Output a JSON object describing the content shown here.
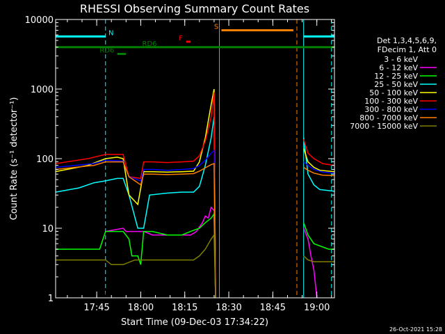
{
  "chart_data": {
    "type": "line",
    "title": "RHESSI Observing Summary Count Rates",
    "xlabel": "Start Time (09-Dec-03 17:34:22)",
    "ylabel": "Count Rate (s⁻¹ detector⁻¹)",
    "yscale": "log",
    "ylim": [
      1,
      10000
    ],
    "xlim_minutes": [
      -3,
      92
    ],
    "x_ticks": [
      {
        "m": 11,
        "label": "17:45"
      },
      {
        "m": 26,
        "label": "18:00"
      },
      {
        "m": 41,
        "label": "18:15"
      },
      {
        "m": 56,
        "label": "18:30"
      },
      {
        "m": 71,
        "label": "18:45"
      },
      {
        "m": 86,
        "label": "19:00"
      }
    ],
    "y_ticks": [
      {
        "v": 1,
        "label": "1"
      },
      {
        "v": 10,
        "label": "10"
      },
      {
        "v": 100,
        "label": "100"
      },
      {
        "v": 1000,
        "label": "1000"
      },
      {
        "v": 10000,
        "label": "10000"
      }
    ],
    "legend_title": [
      "Det 1,3,4,5,6,9,",
      "FDecim 1, Att 0"
    ],
    "legend_position": "right",
    "footer": "26-Oct-2021 15:28",
    "series": [
      {
        "name": "3 - 6 keV",
        "color": "#000000",
        "segments": [
          [
            [
              -3,
              1
            ],
            [
              14,
              1
            ],
            [
              14.5,
              1.5
            ],
            [
              16,
              2
            ],
            [
              19,
              2
            ],
            [
              22,
              2
            ],
            [
              25,
              3
            ],
            [
              28,
              2
            ],
            [
              31,
              3
            ],
            [
              34,
              2
            ],
            [
              37,
              3
            ],
            [
              40,
              2
            ],
            [
              43,
              3
            ],
            [
              46,
              3
            ],
            [
              49,
              5
            ],
            [
              51,
              5
            ],
            [
              51.5,
              1
            ]
          ],
          [
            [
              81.5,
              4
            ],
            [
              83,
              3
            ],
            [
              84,
              2
            ],
            [
              85,
              1
            ]
          ]
        ]
      },
      {
        "name": "6 - 12 keV",
        "color": "#ff00ff",
        "segments": [
          [
            [
              14,
              9
            ],
            [
              20,
              10
            ],
            [
              21,
              9
            ],
            [
              25,
              9
            ],
            [
              27,
              9
            ],
            [
              30,
              8
            ],
            [
              35,
              8
            ],
            [
              40,
              8
            ],
            [
              43,
              8
            ],
            [
              45,
              9
            ],
            [
              47,
              12
            ],
            [
              48,
              15
            ],
            [
              49,
              14
            ],
            [
              50,
              20
            ],
            [
              51,
              18
            ],
            [
              51.5,
              1
            ]
          ],
          [
            [
              81.5,
              10
            ],
            [
              83,
              7
            ],
            [
              84,
              4
            ],
            [
              85,
              2.5
            ],
            [
              86,
              1
            ]
          ]
        ]
      },
      {
        "name": "12 - 25 keV",
        "color": "#00ff00",
        "segments": [
          [
            [
              -3,
              5
            ],
            [
              12,
              5
            ],
            [
              14,
              9
            ],
            [
              20,
              9
            ],
            [
              22,
              7
            ],
            [
              23,
              4
            ],
            [
              25,
              4
            ],
            [
              26,
              3
            ],
            [
              27,
              9
            ],
            [
              30,
              9
            ],
            [
              35,
              8
            ],
            [
              40,
              8
            ],
            [
              43,
              9
            ],
            [
              46,
              10
            ],
            [
              48,
              12
            ],
            [
              50,
              14
            ],
            [
              51,
              16
            ],
            [
              51.5,
              1
            ]
          ],
          [
            [
              81.5,
              12
            ],
            [
              83,
              8
            ],
            [
              85,
              6
            ],
            [
              90,
              5
            ],
            [
              92,
              5
            ]
          ]
        ]
      },
      {
        "name": "25 - 50 keV",
        "color": "#00ffff",
        "segments": [
          [
            [
              -3,
              33
            ],
            [
              5,
              38
            ],
            [
              10,
              45
            ],
            [
              14,
              48
            ],
            [
              18,
              52
            ],
            [
              20,
              52
            ],
            [
              22,
              30
            ],
            [
              25,
              10
            ],
            [
              27,
              10
            ],
            [
              29,
              30
            ],
            [
              35,
              32
            ],
            [
              40,
              33
            ],
            [
              44,
              33
            ],
            [
              46,
              40
            ],
            [
              48,
              80
            ],
            [
              50,
              200
            ],
            [
              51,
              400
            ],
            [
              51.5,
              1
            ]
          ],
          [
            [
              81.5,
              200
            ],
            [
              83,
              60
            ],
            [
              85,
              42
            ],
            [
              87,
              36
            ],
            [
              92,
              34
            ]
          ]
        ]
      },
      {
        "name": "50 - 100 keV",
        "color": "#ffff00",
        "segments": [
          [
            [
              -3,
              65
            ],
            [
              8,
              80
            ],
            [
              14,
              100
            ],
            [
              18,
              105
            ],
            [
              20,
              100
            ],
            [
              22,
              30
            ],
            [
              25,
              22
            ],
            [
              27,
              65
            ],
            [
              30,
              65
            ],
            [
              35,
              64
            ],
            [
              40,
              65
            ],
            [
              44,
              66
            ],
            [
              46,
              90
            ],
            [
              48,
              200
            ],
            [
              50,
              600
            ],
            [
              51,
              1000
            ],
            [
              51.5,
              1
            ]
          ],
          [
            [
              81.5,
              140
            ],
            [
              83,
              90
            ],
            [
              85,
              75
            ],
            [
              87,
              68
            ],
            [
              92,
              65
            ]
          ]
        ]
      },
      {
        "name": "100 - 300 keV",
        "color": "#ff0000",
        "segments": [
          [
            [
              -3,
              85
            ],
            [
              8,
              100
            ],
            [
              14,
              115
            ],
            [
              20,
              115
            ],
            [
              22,
              55
            ],
            [
              26,
              52
            ],
            [
              27,
              90
            ],
            [
              30,
              90
            ],
            [
              35,
              88
            ],
            [
              40,
              90
            ],
            [
              44,
              92
            ],
            [
              46,
              110
            ],
            [
              48,
              180
            ],
            [
              50,
              400
            ],
            [
              51,
              900
            ],
            [
              51.5,
              1
            ]
          ],
          [
            [
              81.5,
              190
            ],
            [
              83,
              120
            ],
            [
              85,
              100
            ],
            [
              88,
              85
            ],
            [
              92,
              80
            ]
          ]
        ]
      },
      {
        "name": "300 - 800 keV",
        "color": "#0000ff",
        "segments": [
          [
            [
              -3,
              75
            ],
            [
              10,
              85
            ],
            [
              14,
              95
            ],
            [
              20,
              92
            ],
            [
              22,
              55
            ],
            [
              26,
              48
            ],
            [
              27,
              70
            ],
            [
              30,
              70
            ],
            [
              35,
              68
            ],
            [
              40,
              70
            ],
            [
              44,
              72
            ],
            [
              46,
              80
            ],
            [
              48,
              95
            ],
            [
              50,
              120
            ],
            [
              51,
              130
            ],
            [
              51.5,
              1
            ]
          ],
          [
            [
              81.5,
              90
            ],
            [
              83,
              80
            ],
            [
              85,
              70
            ],
            [
              88,
              64
            ],
            [
              92,
              62
            ]
          ]
        ]
      },
      {
        "name": "800 - 7000 keV",
        "color": "#ff8000",
        "segments": [
          [
            [
              -3,
              70
            ],
            [
              10,
              80
            ],
            [
              14,
              90
            ],
            [
              20,
              90
            ],
            [
              22,
              55
            ],
            [
              26,
              42
            ],
            [
              27,
              60
            ],
            [
              30,
              60
            ],
            [
              35,
              59
            ],
            [
              40,
              60
            ],
            [
              44,
              61
            ],
            [
              46,
              66
            ],
            [
              48,
              74
            ],
            [
              50,
              82
            ],
            [
              51,
              85
            ],
            [
              51.5,
              1
            ]
          ],
          [
            [
              81.5,
              75
            ],
            [
              83,
              68
            ],
            [
              85,
              62
            ],
            [
              88,
              58
            ],
            [
              92,
              57
            ]
          ]
        ]
      },
      {
        "name": "7000 - 15000 keV",
        "color": "#808000",
        "segments": [
          [
            [
              -3,
              3.5
            ],
            [
              14,
              3.5
            ],
            [
              16,
              3
            ],
            [
              20,
              3
            ],
            [
              24,
              3.5
            ],
            [
              30,
              3.5
            ],
            [
              35,
              3.5
            ],
            [
              40,
              3.5
            ],
            [
              44,
              3.5
            ],
            [
              46,
              4
            ],
            [
              48,
              5
            ],
            [
              50,
              7
            ],
            [
              51,
              8
            ],
            [
              51.5,
              1
            ]
          ],
          [
            [
              81.5,
              4
            ],
            [
              83,
              3.5
            ],
            [
              85,
              3.3
            ],
            [
              92,
              3.3
            ]
          ]
        ]
      }
    ],
    "flags": [
      {
        "label": "N",
        "color": "#00ffff",
        "x1": -3,
        "x2": 14,
        "y": 5700,
        "label_at": 15
      },
      {
        "label": "N",
        "color": "#00ffff",
        "x1": 81.5,
        "x2": 92,
        "y": 5700
      },
      {
        "label": "RD6",
        "color": "#007f00",
        "x1": -3,
        "x2": 92,
        "y": 4000,
        "label_at": 26.5
      },
      {
        "label": "RD6",
        "color": "#007f00",
        "x1": 18,
        "x2": 21,
        "y": 3200,
        "label_at": 12
      },
      {
        "label": "F",
        "color": "#ff0000",
        "x1": 41.5,
        "x2": 43,
        "y": 4800,
        "label_at": 39
      },
      {
        "label": "S",
        "color": "#ff8000",
        "x1": 53.5,
        "x2": 78,
        "y": 7000,
        "label_at": 51
      }
    ],
    "vlines": [
      {
        "m": -3,
        "color": "#00ffff",
        "dash": false
      },
      {
        "m": 14,
        "color": "#00ffff",
        "dash": true
      },
      {
        "m": 52.8,
        "color": "#ff8000",
        "dash": false
      },
      {
        "m": 79.2,
        "color": "#ff8000",
        "dash": true
      },
      {
        "m": 81.5,
        "color": "#00ffff",
        "dash": false
      },
      {
        "m": 91,
        "color": "#00ffff",
        "dash": true
      }
    ]
  }
}
